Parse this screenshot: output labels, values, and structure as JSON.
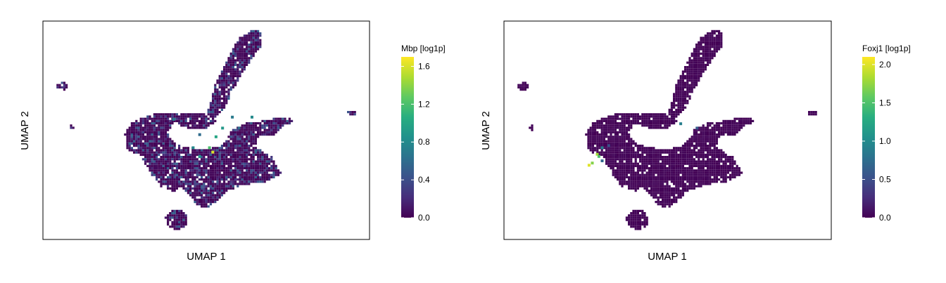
{
  "chart_data": [
    {
      "type": "heatmap",
      "xlabel": "UMAP 1",
      "ylabel": "UMAP 2",
      "legend": {
        "title": "Mbp [log1p]",
        "colormap": "viridis",
        "range": [
          0,
          1.7
        ],
        "ticks": [
          0.0,
          0.4,
          0.8,
          1.2,
          1.6
        ],
        "tick_labels": [
          "0.0",
          "0.4",
          "0.8",
          "1.2",
          "1.6"
        ],
        "placement": "right"
      },
      "grid": false,
      "hotspots": [
        {
          "x": 0.52,
          "y": 0.6,
          "value": 1.6
        },
        {
          "x": 0.51,
          "y": 0.58,
          "value": 1.2
        },
        {
          "x": 0.48,
          "y": 0.62,
          "value": 0.9
        },
        {
          "x": 0.53,
          "y": 0.53,
          "value": 1.0
        },
        {
          "x": 0.46,
          "y": 0.58,
          "value": 0.8
        },
        {
          "x": 0.4,
          "y": 0.45,
          "value": 0.7
        },
        {
          "x": 0.55,
          "y": 0.49,
          "value": 0.9
        },
        {
          "x": 0.6,
          "y": 0.49,
          "value": 0.6
        },
        {
          "x": 0.58,
          "y": 0.44,
          "value": 0.7
        },
        {
          "x": 0.64,
          "y": 0.44,
          "value": 0.8
        },
        {
          "x": 0.48,
          "y": 0.52,
          "value": 0.6
        }
      ]
    },
    {
      "type": "heatmap",
      "xlabel": "UMAP 1",
      "ylabel": "UMAP 2",
      "legend": {
        "title": "Foxj1 [log1p]",
        "colormap": "viridis",
        "range": [
          0,
          2.1
        ],
        "ticks": [
          0.0,
          0.5,
          1.0,
          1.5,
          2.0
        ],
        "tick_labels": [
          "0.0",
          "0.5",
          "1.0",
          "1.5",
          "2.0"
        ],
        "placement": "right"
      },
      "grid": false,
      "hotspots": [
        {
          "x": 0.26,
          "y": 0.66,
          "value": 2.0
        },
        {
          "x": 0.27,
          "y": 0.65,
          "value": 1.7
        },
        {
          "x": 0.285,
          "y": 0.61,
          "value": 1.8
        },
        {
          "x": 0.29,
          "y": 0.62,
          "value": 1.5
        },
        {
          "x": 0.3,
          "y": 0.58,
          "value": 0.9
        },
        {
          "x": 0.3,
          "y": 0.64,
          "value": 0.7
        },
        {
          "x": 0.32,
          "y": 0.57,
          "value": 0.5
        },
        {
          "x": 0.54,
          "y": 0.47,
          "value": 0.9
        },
        {
          "x": 0.59,
          "y": 0.49,
          "value": 0.6
        }
      ]
    }
  ]
}
